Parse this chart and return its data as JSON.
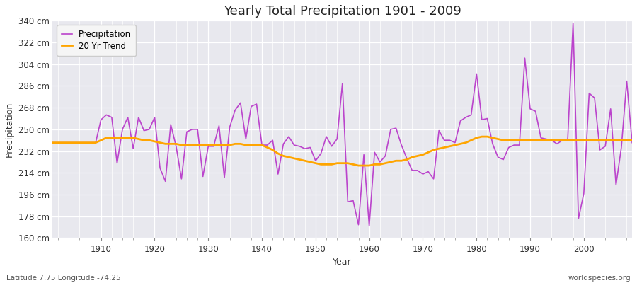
{
  "title": "Yearly Total Precipitation 1901 - 2009",
  "xlabel": "Year",
  "ylabel": "Precipitation",
  "footnote_left": "Latitude 7.75 Longitude -74.25",
  "footnote_right": "worldspecies.org",
  "ylim": [
    160,
    340
  ],
  "yticks": [
    160,
    178,
    196,
    214,
    232,
    250,
    268,
    286,
    304,
    322,
    340
  ],
  "ytick_labels": [
    "160 cm",
    "178 cm",
    "196 cm",
    "214 cm",
    "232 cm",
    "250 cm",
    "268 cm",
    "286 cm",
    "304 cm",
    "322 cm",
    "340 cm"
  ],
  "xticks": [
    1910,
    1920,
    1930,
    1940,
    1950,
    1960,
    1970,
    1980,
    1990,
    2000
  ],
  "precip_color": "#bb44cc",
  "trend_color": "#ffa500",
  "plot_bg_color": "#e8e8ee",
  "fig_bg_color": "#ffffff",
  "legend_bg": "#f5f5f5",
  "precip_label": "Precipitation",
  "trend_label": "20 Yr Trend",
  "years": [
    1901,
    1902,
    1903,
    1904,
    1905,
    1906,
    1907,
    1908,
    1909,
    1910,
    1911,
    1912,
    1913,
    1914,
    1915,
    1916,
    1917,
    1918,
    1919,
    1920,
    1921,
    1922,
    1923,
    1924,
    1925,
    1926,
    1927,
    1928,
    1929,
    1930,
    1931,
    1932,
    1933,
    1934,
    1935,
    1936,
    1937,
    1938,
    1939,
    1940,
    1941,
    1942,
    1943,
    1944,
    1945,
    1946,
    1947,
    1948,
    1949,
    1950,
    1951,
    1952,
    1953,
    1954,
    1955,
    1956,
    1957,
    1958,
    1959,
    1960,
    1961,
    1962,
    1963,
    1964,
    1965,
    1966,
    1967,
    1968,
    1969,
    1970,
    1971,
    1972,
    1973,
    1974,
    1975,
    1976,
    1977,
    1978,
    1979,
    1980,
    1981,
    1982,
    1983,
    1984,
    1985,
    1986,
    1987,
    1988,
    1989,
    1990,
    1991,
    1992,
    1993,
    1994,
    1995,
    1996,
    1997,
    1998,
    1999,
    2000,
    2001,
    2002,
    2003,
    2004,
    2005,
    2006,
    2007,
    2008,
    2009
  ],
  "precip": [
    239,
    239,
    239,
    239,
    239,
    239,
    239,
    239,
    239,
    258,
    262,
    260,
    222,
    250,
    260,
    234,
    260,
    249,
    250,
    260,
    218,
    207,
    254,
    236,
    209,
    248,
    250,
    250,
    211,
    236,
    236,
    253,
    210,
    252,
    266,
    272,
    242,
    269,
    271,
    237,
    237,
    241,
    213,
    238,
    244,
    237,
    236,
    234,
    235,
    224,
    230,
    244,
    236,
    242,
    288,
    190,
    191,
    171,
    229,
    170,
    231,
    223,
    228,
    250,
    251,
    237,
    226,
    216,
    216,
    213,
    215,
    209,
    249,
    241,
    241,
    239,
    257,
    260,
    262,
    296,
    258,
    259,
    238,
    227,
    225,
    235,
    237,
    237,
    309,
    267,
    265,
    243,
    242,
    241,
    238,
    241,
    242,
    338,
    176,
    197,
    280,
    276,
    233,
    236,
    267,
    204,
    235,
    290,
    239
  ],
  "trend": [
    239,
    239,
    239,
    239,
    239,
    239,
    239,
    239,
    239,
    241,
    243,
    243,
    243,
    243,
    243,
    243,
    242,
    241,
    241,
    240,
    239,
    238,
    238,
    238,
    237,
    237,
    237,
    237,
    237,
    237,
    237,
    237,
    237,
    237,
    238,
    238,
    237,
    237,
    237,
    237,
    235,
    233,
    230,
    228,
    227,
    226,
    225,
    224,
    223,
    222,
    221,
    221,
    221,
    222,
    222,
    222,
    221,
    220,
    220,
    220,
    221,
    221,
    222,
    223,
    224,
    224,
    225,
    227,
    228,
    229,
    231,
    233,
    234,
    235,
    236,
    237,
    238,
    239,
    241,
    243,
    244,
    244,
    243,
    242,
    241,
    241,
    241,
    241,
    241,
    241,
    241,
    241,
    241,
    241,
    241,
    241,
    241,
    241,
    241,
    241,
    241,
    241,
    241,
    241,
    241,
    241,
    241,
    241,
    241
  ]
}
